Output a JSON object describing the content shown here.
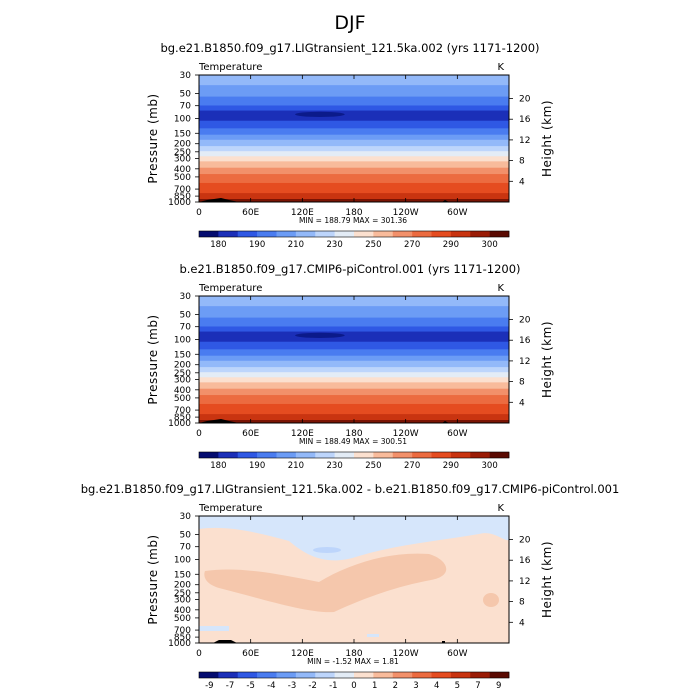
{
  "figure": {
    "title": "DJF"
  },
  "chart_data": [
    {
      "type": "heatmap",
      "title": "bg.e21.B1850.f09_g17.LIGtransient_121.5ka.002 (yrs 1171-1200)",
      "variable": "Temperature",
      "units": "K",
      "xlabel": "",
      "ylabel": "Pressure (mb)",
      "y2label": "Height (km)",
      "x_ticks": [
        "0",
        "60E",
        "120E",
        "180",
        "120W",
        "60W"
      ],
      "y_ticks": [
        "30",
        "50",
        "70",
        "100",
        "150",
        "200",
        "250",
        "300",
        "400",
        "500",
        "700",
        "850",
        "1000"
      ],
      "y2_ticks": [
        "20",
        "16",
        "12",
        "8",
        "4"
      ],
      "min": "188.79",
      "max": "301.36",
      "minmax_text": "MIN = 188.79   MAX = 301.36",
      "colorbar_ticks": [
        "180",
        "190",
        "210",
        "230",
        "250",
        "270",
        "290",
        "300"
      ],
      "colors": [
        "#040c70",
        "#1b2fb8",
        "#2f58e4",
        "#4a7cf0",
        "#6c9cf5",
        "#93b9f9",
        "#bdd5fb",
        "#e3ecf6",
        "#fbe0cf",
        "#f8bb9b",
        "#f2906a",
        "#ec6b40",
        "#e54c20",
        "#c93410",
        "#9a1c06",
        "#5a0a02"
      ]
    },
    {
      "type": "heatmap",
      "title": "b.e21.B1850.f09_g17.CMIP6-piControl.001 (yrs 1171-1200)",
      "variable": "Temperature",
      "units": "K",
      "xlabel": "",
      "ylabel": "Pressure (mb)",
      "y2label": "Height (km)",
      "x_ticks": [
        "0",
        "60E",
        "120E",
        "180",
        "120W",
        "60W"
      ],
      "y_ticks": [
        "30",
        "50",
        "70",
        "100",
        "150",
        "200",
        "250",
        "300",
        "400",
        "500",
        "700",
        "850",
        "1000"
      ],
      "y2_ticks": [
        "20",
        "16",
        "12",
        "8",
        "4"
      ],
      "min": "188.49",
      "max": "300.51",
      "minmax_text": "MIN = 188.49   MAX = 300.51",
      "colorbar_ticks": [
        "180",
        "190",
        "210",
        "230",
        "250",
        "270",
        "290",
        "300"
      ],
      "colors": [
        "#040c70",
        "#1b2fb8",
        "#2f58e4",
        "#4a7cf0",
        "#6c9cf5",
        "#93b9f9",
        "#bdd5fb",
        "#e3ecf6",
        "#fbe0cf",
        "#f8bb9b",
        "#f2906a",
        "#ec6b40",
        "#e54c20",
        "#c93410",
        "#9a1c06",
        "#5a0a02"
      ]
    },
    {
      "type": "heatmap",
      "title": "bg.e21.B1850.f09_g17.LIGtransient_121.5ka.002 - b.e21.B1850.f09_g17.CMIP6-piControl.001",
      "variable": "Temperature",
      "units": "K",
      "xlabel": "",
      "ylabel": "Pressure (mb)",
      "y2label": "Height (km)",
      "x_ticks": [
        "0",
        "60E",
        "120E",
        "180",
        "120W",
        "60W"
      ],
      "y_ticks": [
        "30",
        "50",
        "70",
        "100",
        "150",
        "200",
        "250",
        "300",
        "400",
        "500",
        "700",
        "850",
        "1000"
      ],
      "y2_ticks": [
        "20",
        "16",
        "12",
        "8",
        "4"
      ],
      "min": "-1.52",
      "max": "1.81",
      "minmax_text": "MIN =   -1.52   MAX =    1.81",
      "colorbar_ticks": [
        "-9",
        "-7",
        "-5",
        "-4",
        "-3",
        "-2",
        "-1",
        "0",
        "1",
        "2",
        "3",
        "4",
        "5",
        "7",
        "9"
      ],
      "colors": [
        "#040c70",
        "#1b2fb8",
        "#2f58e4",
        "#4a7cf0",
        "#6c9cf5",
        "#93b9f9",
        "#bdd5fb",
        "#e3ecf6",
        "#fbe0cf",
        "#f8bb9b",
        "#f2906a",
        "#ec6b40",
        "#e54c20",
        "#c93410",
        "#9a1c06",
        "#5a0a02"
      ]
    }
  ]
}
